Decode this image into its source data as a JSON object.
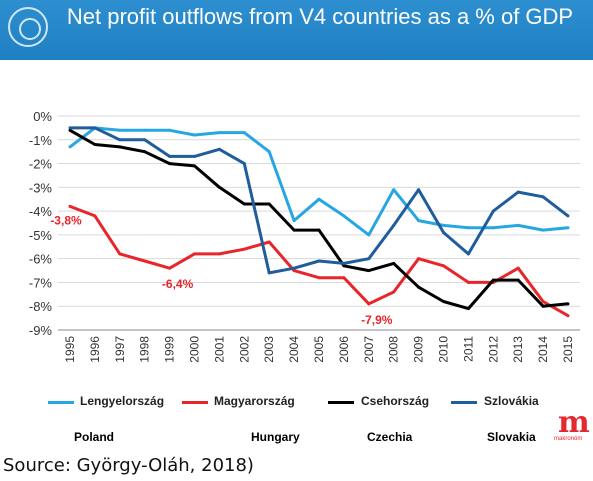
{
  "title": "Net profit outflows from V4 countries as a % of GDP",
  "colors": {
    "Lengyelország": "#27a7e1",
    "Magyarország": "#e8262a",
    "Csehország": "#000000",
    "Szlovákia": "#1f5d9c",
    "annotation": "#e8262a"
  },
  "chart_data": {
    "type": "line",
    "x": [
      "1995",
      "1996",
      "1997",
      "1998",
      "1999",
      "2000",
      "2001",
      "2002",
      "2003",
      "2004",
      "2005",
      "2006",
      "2007",
      "2008",
      "2009",
      "2010",
      "2011",
      "2012",
      "2013",
      "2014",
      "2015"
    ],
    "ylim": [
      -9,
      0
    ],
    "yticks": [
      "0%",
      "-1%",
      "-2%",
      "-3%",
      "-4%",
      "-5%",
      "-6%",
      "-7%",
      "-8%",
      "-9%"
    ],
    "grid": true,
    "legend_position": "bottom",
    "series": [
      {
        "name": "Lengyelország",
        "values": [
          -1.3,
          -0.5,
          -0.6,
          -0.6,
          -0.6,
          -0.8,
          -0.7,
          -0.7,
          -1.5,
          -4.4,
          -3.5,
          -4.2,
          -5.0,
          -3.1,
          -4.4,
          -4.6,
          -4.7,
          -4.7,
          -4.6,
          -4.8,
          -4.7
        ]
      },
      {
        "name": "Magyarország",
        "values": [
          -3.8,
          -4.2,
          -5.8,
          -6.1,
          -6.4,
          -5.8,
          -5.8,
          -5.6,
          -5.3,
          -6.5,
          -6.8,
          -6.8,
          -7.9,
          -7.4,
          -6.0,
          -6.3,
          -7.0,
          -7.0,
          -6.4,
          -7.8,
          -8.4
        ]
      },
      {
        "name": "Csehország",
        "values": [
          -0.6,
          -1.2,
          -1.3,
          -1.5,
          -2.0,
          -2.1,
          -3.0,
          -3.7,
          -3.7,
          -4.8,
          -4.8,
          -6.3,
          -6.5,
          -6.2,
          -7.2,
          -7.8,
          -8.1,
          -6.9,
          -6.9,
          -8.0,
          -7.9
        ]
      },
      {
        "name": "Szlovákia",
        "values": [
          -0.5,
          -0.5,
          -1.0,
          -1.0,
          -1.7,
          -1.7,
          -1.4,
          -2.0,
          -6.6,
          -6.4,
          -6.1,
          -6.2,
          -6.0,
          -4.6,
          -3.1,
          -4.9,
          -5.8,
          -4.0,
          -3.2,
          -3.4,
          -4.2
        ]
      }
    ],
    "annotations": [
      {
        "text": "-3,8%",
        "series": "Magyarország",
        "x": "1995",
        "y": -3.8
      },
      {
        "text": "-6,4%",
        "series": "Magyarország",
        "x": "1999",
        "y": -6.4
      },
      {
        "text": "-7,9%",
        "series": "Magyarország",
        "x": "2007",
        "y": -7.9
      }
    ]
  },
  "countries": [
    "Poland",
    "Hungary",
    "Czechia",
    "Slovakia"
  ],
  "brand": {
    "letter": "m",
    "sub": "makronóm"
  },
  "source": "Source: György-Oláh, 2018)"
}
